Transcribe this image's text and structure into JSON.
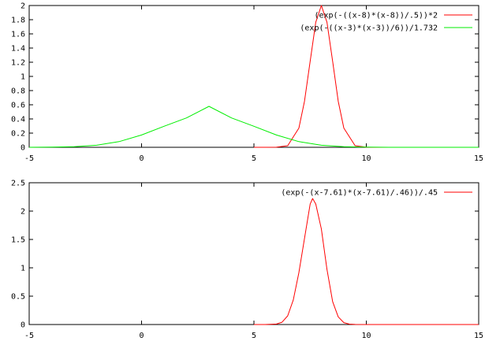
{
  "chart_data": [
    {
      "type": "line",
      "xlim": [
        -5,
        15
      ],
      "ylim": [
        0,
        2
      ],
      "x_ticks": [
        "-5",
        "0",
        "5",
        "10",
        "15"
      ],
      "y_ticks": [
        "0",
        "0.2",
        "0.4",
        "0.6",
        "0.8",
        "1",
        "1.2",
        "1.4",
        "1.6",
        "1.8",
        "2"
      ],
      "grid": false,
      "legend_position": "top-right",
      "series": [
        {
          "name": "(exp(-((x-8)*(x-8))/.5))*2",
          "color": "#ff0000",
          "x": [
            5.0,
            5.5,
            6.0,
            6.5,
            7.0,
            7.25,
            7.5,
            7.75,
            8.0,
            8.25,
            8.5,
            8.75,
            9.0,
            9.5,
            10.0,
            10.5,
            11.0,
            15.0
          ],
          "y": [
            0,
            0.0,
            0.0007,
            0.022,
            0.271,
            0.649,
            1.213,
            1.765,
            2.0,
            1.765,
            1.213,
            0.649,
            0.271,
            0.022,
            0.0007,
            0,
            0,
            0
          ]
        },
        {
          "name": "(exp(-((x-3)*(x-3))/6))/1.732",
          "color": "#00ee00",
          "x": [
            -5,
            -4,
            -3,
            -2,
            -1,
            0,
            1,
            2,
            3,
            4,
            5,
            6,
            7,
            8,
            9,
            10,
            11,
            15
          ],
          "y": [
            0.0001,
            0.0017,
            0.0078,
            0.0286,
            0.0805,
            0.173,
            0.2966,
            0.4139,
            0.5774,
            0.4139,
            0.2966,
            0.173,
            0.0805,
            0.0286,
            0.0078,
            0.0017,
            0.0001,
            0
          ]
        }
      ]
    },
    {
      "type": "line",
      "xlim": [
        -5,
        15
      ],
      "ylim": [
        0,
        2.5
      ],
      "x_ticks": [
        "-5",
        "0",
        "5",
        "10",
        "15"
      ],
      "y_ticks": [
        "0",
        "0.5",
        "1",
        "1.5",
        "2",
        "2.5"
      ],
      "grid": false,
      "legend_position": "top-right",
      "series": [
        {
          "name": "(exp(-(x-7.61)*(x-7.61)/.46))/.45",
          "color": "#ff0000",
          "x": [
            5.0,
            5.5,
            6.0,
            6.25,
            6.5,
            6.75,
            7.0,
            7.25,
            7.5,
            7.61,
            7.75,
            8.0,
            8.25,
            8.5,
            8.75,
            9.0,
            9.25,
            9.5,
            10.0,
            15.0
          ],
          "y": [
            0,
            0.0001,
            0.008,
            0.0402,
            0.1532,
            0.4331,
            0.915,
            1.5161,
            2.1232,
            2.2222,
            2.1246,
            1.6852,
            0.973,
            0.4036,
            0.1346,
            0.0334,
            0.0065,
            0.001,
            0,
            0
          ]
        }
      ]
    }
  ]
}
